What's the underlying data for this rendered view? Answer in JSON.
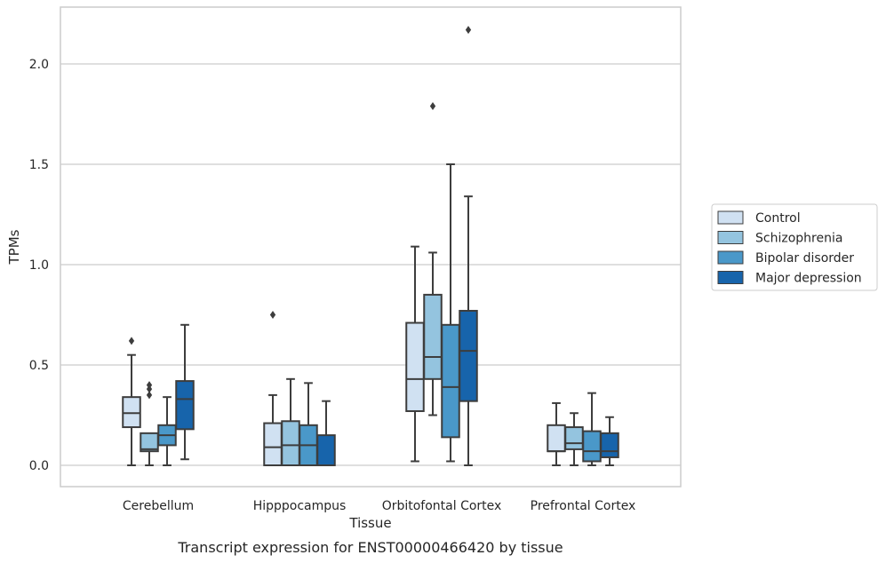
{
  "chart_data": {
    "type": "box",
    "title": "",
    "caption": "Transcript expression for ENST00000466420 by tissue",
    "xlabel": "Tissue",
    "ylabel": "TPMs",
    "ylim": [
      -0.1,
      2.28
    ],
    "yticks": [
      0.0,
      0.5,
      1.0,
      1.5,
      2.0
    ],
    "ytick_labels": [
      "0.0",
      "0.5",
      "1.0",
      "1.5",
      "2.0"
    ],
    "grid": "horizontal",
    "legend_position": "right",
    "categories": [
      "Cerebellum",
      "Hipppocampus",
      "Orbitofontal Cortex",
      "Prefrontal Cortex"
    ],
    "series": [
      {
        "name": "Control",
        "color": "#d0e1f2",
        "boxes": [
          {
            "min": 0.0,
            "q1": 0.19,
            "median": 0.26,
            "q3": 0.34,
            "max": 0.55,
            "outliers": [
              0.62
            ]
          },
          {
            "min": 0.0,
            "q1": 0.0,
            "median": 0.09,
            "q3": 0.21,
            "max": 0.35,
            "outliers": [
              0.75
            ]
          },
          {
            "min": 0.02,
            "q1": 0.27,
            "median": 0.43,
            "q3": 0.71,
            "max": 1.09,
            "outliers": []
          },
          {
            "min": 0.0,
            "q1": 0.07,
            "median": 0.07,
            "q3": 0.2,
            "max": 0.31,
            "outliers": []
          }
        ]
      },
      {
        "name": "Schizophrenia",
        "color": "#94c4df",
        "boxes": [
          {
            "min": 0.0,
            "q1": 0.07,
            "median": 0.08,
            "q3": 0.16,
            "max": 0.16,
            "outliers": [
              0.35,
              0.38,
              0.4
            ]
          },
          {
            "min": 0.0,
            "q1": 0.0,
            "median": 0.1,
            "q3": 0.22,
            "max": 0.43,
            "outliers": []
          },
          {
            "min": 0.25,
            "q1": 0.43,
            "median": 0.54,
            "q3": 0.85,
            "max": 1.06,
            "outliers": [
              1.79
            ]
          },
          {
            "min": 0.0,
            "q1": 0.08,
            "median": 0.11,
            "q3": 0.19,
            "max": 0.26,
            "outliers": []
          }
        ]
      },
      {
        "name": "Bipolar disorder",
        "color": "#4a98c9",
        "boxes": [
          {
            "min": 0.0,
            "q1": 0.1,
            "median": 0.15,
            "q3": 0.2,
            "max": 0.34,
            "outliers": []
          },
          {
            "min": 0.0,
            "q1": 0.0,
            "median": 0.1,
            "q3": 0.2,
            "max": 0.41,
            "outliers": []
          },
          {
            "min": 0.02,
            "q1": 0.14,
            "median": 0.39,
            "q3": 0.7,
            "max": 1.5,
            "outliers": []
          },
          {
            "min": 0.0,
            "q1": 0.02,
            "median": 0.07,
            "q3": 0.17,
            "max": 0.36,
            "outliers": []
          }
        ]
      },
      {
        "name": "Major depression",
        "color": "#1764ab",
        "boxes": [
          {
            "min": 0.03,
            "q1": 0.18,
            "median": 0.33,
            "q3": 0.42,
            "max": 0.7,
            "outliers": []
          },
          {
            "min": 0.0,
            "q1": 0.0,
            "median": 0.0,
            "q3": 0.15,
            "max": 0.32,
            "outliers": []
          },
          {
            "min": 0.0,
            "q1": 0.32,
            "median": 0.57,
            "q3": 0.77,
            "max": 1.34,
            "outliers": [
              2.17
            ]
          },
          {
            "min": 0.0,
            "q1": 0.04,
            "median": 0.07,
            "q3": 0.16,
            "max": 0.24,
            "outliers": []
          }
        ]
      }
    ]
  }
}
